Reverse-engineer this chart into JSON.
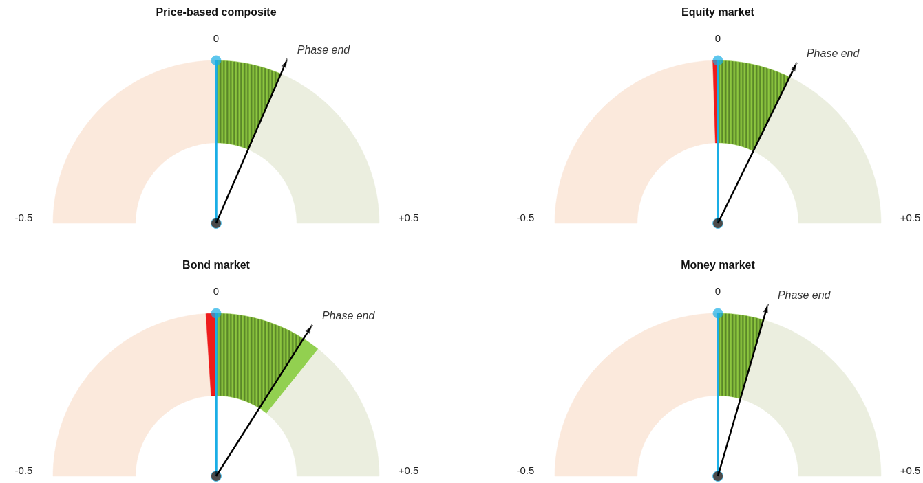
{
  "chart_data": [
    {
      "type": "donut",
      "title": "Price-based composite",
      "categories": [
        null,
        null,
        null
      ],
      "values": [
        50,
        13,
        37
      ],
      "colors": [
        "#fbe9dc",
        "#8cc63f",
        "#ebeedf"
      ],
      "annotations": [
        "-0.5",
        "0",
        "+0.5",
        "Phase end"
      ]
    },
    {
      "type": "donut",
      "title": "Equity market",
      "categories": [
        null,
        null,
        null,
        null
      ],
      "values": [
        49,
        1,
        14.5,
        35.5
      ],
      "colors": [
        "#fbe9dc",
        "#ee1c1c",
        "#8cc63f",
        "#ebeedf"
      ],
      "annotations": [
        "-0.5",
        "0",
        "+0.5",
        "Phase end"
      ]
    },
    {
      "type": "donut",
      "title": "Bond market",
      "categories": [
        null,
        null,
        null,
        null,
        null
      ],
      "values": [
        48,
        2,
        18,
        3.5,
        28.5
      ],
      "colors": [
        "#fbe9dc",
        "#ee1c1c",
        "#8cc63f",
        "#92d050",
        "#ebeedf"
      ],
      "annotations": [
        "-0.5",
        "0",
        "+0.5",
        "Phase end"
      ]
    },
    {
      "type": "donut",
      "title": "Money market",
      "categories": [
        null,
        null,
        null
      ],
      "values": [
        50,
        9,
        41
      ],
      "colors": [
        "#fbe9dc",
        "#8cc63f",
        "#ebeedf"
      ],
      "annotations": [
        "-0.5",
        "0",
        "+0.5",
        "Phase end"
      ]
    }
  ]
}
